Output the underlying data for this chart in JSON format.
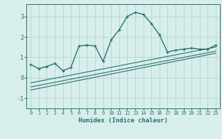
{
  "xlabel": "Humidex (Indice chaleur)",
  "background_color": "#d7eeec",
  "line_color": "#2a7068",
  "grid_color": "#b8d8d5",
  "curve_x": [
    0,
    1,
    2,
    3,
    4,
    5,
    6,
    7,
    8,
    9,
    10,
    11,
    12,
    13,
    14,
    15,
    16,
    17,
    18,
    19,
    20,
    21,
    22,
    23
  ],
  "curve_y": [
    0.65,
    0.45,
    0.55,
    0.7,
    0.35,
    0.5,
    1.55,
    1.6,
    1.55,
    0.8,
    1.85,
    2.35,
    3.0,
    3.2,
    3.1,
    2.65,
    2.1,
    1.25,
    1.35,
    1.4,
    1.45,
    1.4,
    1.4,
    1.6
  ],
  "line1_x": [
    0,
    23
  ],
  "line1_y": [
    -0.6,
    1.2
  ],
  "line2_x": [
    0,
    23
  ],
  "line2_y": [
    -0.45,
    1.3
  ],
  "line3_x": [
    0,
    23
  ],
  "line3_y": [
    -0.25,
    1.5
  ],
  "xlim": [
    -0.5,
    23.5
  ],
  "ylim": [
    -1.5,
    3.6
  ],
  "yticks": [
    -1,
    0,
    1,
    2,
    3
  ],
  "xticks": [
    0,
    1,
    2,
    3,
    4,
    5,
    6,
    7,
    8,
    9,
    10,
    11,
    12,
    13,
    14,
    15,
    16,
    17,
    18,
    19,
    20,
    21,
    22,
    23
  ]
}
